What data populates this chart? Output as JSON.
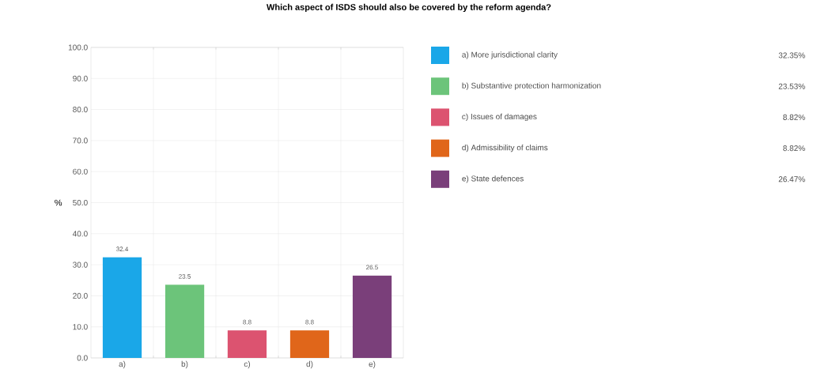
{
  "chart_data": {
    "type": "bar",
    "title": "Which aspect of ISDS should also be covered by the reform agenda?",
    "ylabel": "%",
    "categories": [
      "a)",
      "b)",
      "c)",
      "d)",
      "e)"
    ],
    "series": [
      {
        "name": "a) More jurisdictional clarity",
        "color": "#1aa7e8",
        "values": [
          32.35,
          null,
          null,
          null,
          null
        ],
        "value_labels": [
          "32.4",
          null,
          null,
          null,
          null
        ]
      },
      {
        "name": "b) Substantive protection harmonization",
        "color": "#6cc47a",
        "values": [
          null,
          23.53,
          null,
          null,
          null
        ],
        "value_labels": [
          null,
          "23.5",
          null,
          null,
          null
        ]
      },
      {
        "name": "c) Issues of damages",
        "color": "#dc5370",
        "values": [
          null,
          null,
          8.82,
          null,
          null
        ],
        "value_labels": [
          null,
          null,
          "8.8",
          null,
          null
        ]
      },
      {
        "name": "d) Admissibility of claims",
        "color": "#e0661a",
        "values": [
          null,
          null,
          null,
          8.82,
          null
        ],
        "value_labels": [
          null,
          null,
          null,
          "8.8",
          null
        ]
      },
      {
        "name": "e) State defences",
        "color": "#7a3f7a",
        "values": [
          null,
          null,
          null,
          null,
          26.47
        ],
        "value_labels": [
          null,
          null,
          null,
          null,
          "26.5"
        ]
      }
    ],
    "annotations": [
      "32.35%",
      "23.53%",
      "8.82%",
      "8.82%",
      "26.47%"
    ],
    "ylim": [
      0,
      100
    ],
    "yticks": [
      {
        "value": 0,
        "label": "0.0"
      },
      {
        "value": 10,
        "label": "10.0"
      },
      {
        "value": 20,
        "label": "20.0"
      },
      {
        "value": 30,
        "label": "30.0"
      },
      {
        "value": 40,
        "label": "40.0"
      },
      {
        "value": 50,
        "label": "50.0"
      },
      {
        "value": 60,
        "label": "60.0"
      },
      {
        "value": 70,
        "label": "70.0"
      },
      {
        "value": 80,
        "label": "80.0"
      },
      {
        "value": 90,
        "label": "90.0"
      },
      {
        "value": 100,
        "label": "100.0"
      }
    ],
    "grid": true,
    "legend": "right"
  }
}
